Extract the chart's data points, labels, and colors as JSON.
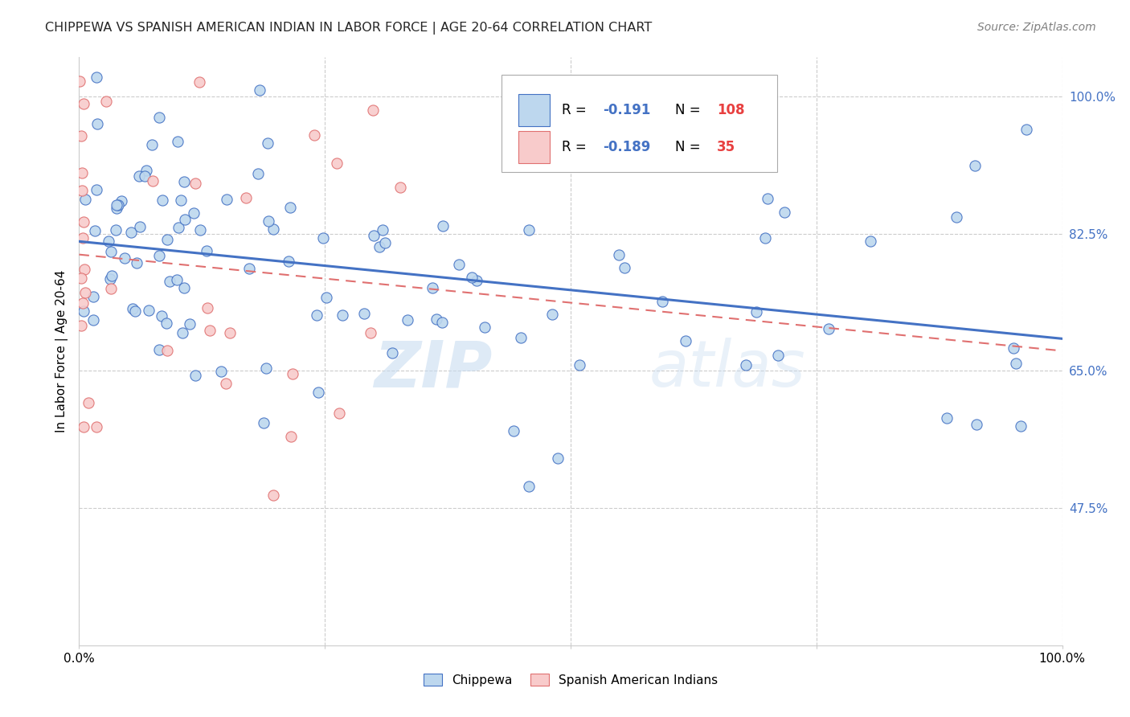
{
  "title": "CHIPPEWA VS SPANISH AMERICAN INDIAN IN LABOR FORCE | AGE 20-64 CORRELATION CHART",
  "source": "Source: ZipAtlas.com",
  "ylabel": "In Labor Force | Age 20-64",
  "watermark_zip": "ZIP",
  "watermark_atlas": "atlas",
  "xlim": [
    0.0,
    1.0
  ],
  "ylim": [
    0.3,
    1.05
  ],
  "ytick_vals": [
    0.475,
    0.65,
    0.825,
    1.0
  ],
  "ytick_labels": [
    "47.5%",
    "65.0%",
    "82.5%",
    "100.0%"
  ],
  "blue_fill": "#BDD7EE",
  "blue_edge": "#4472C4",
  "pink_fill": "#F8CBCB",
  "pink_edge": "#E07070",
  "blue_line": "#4472C4",
  "pink_line": "#E07070",
  "grid_color": "#CCCCCC",
  "title_color": "#262626",
  "source_color": "#808080",
  "legend_r_color": "#4472C4",
  "legend_n_color": "#E84040",
  "r1": "-0.191",
  "n1": "108",
  "r2": "-0.189",
  "n2": "35"
}
